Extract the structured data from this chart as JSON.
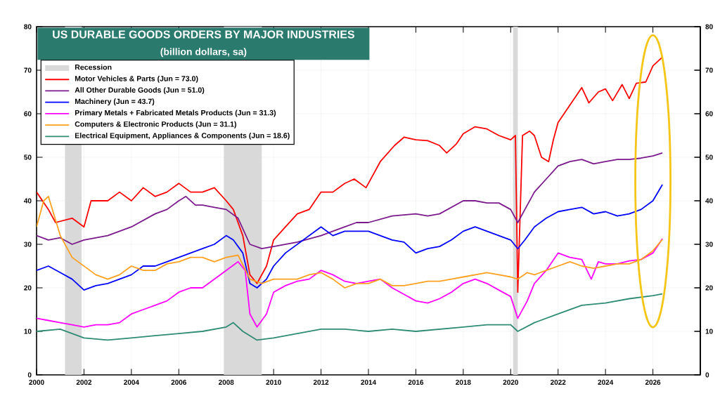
{
  "chart_data": {
    "type": "line",
    "title": "US DURABLE GOODS ORDERS BY MAJOR INDUSTRIES",
    "subtitle": "(billion dollars, sa)",
    "xlim": [
      2000,
      2028
    ],
    "xticks": [
      2000,
      2002,
      2004,
      2006,
      2008,
      2010,
      2012,
      2014,
      2016,
      2018,
      2020,
      2022,
      2024,
      2026
    ],
    "ylim": [
      0,
      80
    ],
    "yticks": [
      0,
      10,
      20,
      30,
      40,
      50,
      60,
      70,
      80
    ],
    "y2lim": [
      0,
      80
    ],
    "y2ticks": [
      0,
      10,
      20,
      30,
      40,
      50,
      60,
      70,
      80
    ],
    "grid": true,
    "legend": "top left",
    "bands": [
      {
        "axis": "x",
        "from": 2001.2,
        "to": 2001.9,
        "label": "Recession",
        "color": "#d9d9d9"
      },
      {
        "axis": "x",
        "from": 2007.9,
        "to": 2009.5,
        "color": "#d9d9d9"
      },
      {
        "axis": "x",
        "from": 2020.1,
        "to": 2020.3,
        "color": "#d9d9d9"
      }
    ],
    "series": [
      {
        "name": "Motor Vehicles & Parts (Jun = 73.0)",
        "color": "#ff0000",
        "x": [
          2000,
          2000.5,
          2000.8,
          2001.5,
          2002,
          2002.3,
          2003,
          2003.5,
          2004,
          2004.5,
          2005,
          2005.5,
          2006,
          2006.5,
          2007,
          2007.5,
          2008,
          2008.3,
          2008.7,
          2009,
          2009.3,
          2009.7,
          2010,
          2010.5,
          2011,
          2011.5,
          2012,
          2012.5,
          2013,
          2013.4,
          2013.9,
          2014.5,
          2015.1,
          2015.5,
          2016,
          2016.5,
          2017,
          2017.3,
          2017.7,
          2018,
          2018.5,
          2019,
          2019.5,
          2020,
          2020.2,
          2020.3,
          2020.5,
          2020.8,
          2021,
          2021.3,
          2021.6,
          2021.8,
          2022,
          2022.5,
          2023,
          2023.3,
          2023.7,
          2024,
          2024.3,
          2024.7,
          2025,
          2025.3,
          2025.7,
          2026,
          2026.4
        ],
        "values": [
          42,
          38,
          35,
          36,
          34,
          40,
          40,
          42,
          40,
          43,
          41,
          42,
          44,
          42,
          42,
          43,
          40,
          38,
          32,
          23,
          21,
          25,
          31,
          34,
          37,
          38,
          42,
          42,
          44,
          45,
          43,
          49,
          52.7,
          54.6,
          54,
          53.8,
          52.7,
          51,
          53,
          55.4,
          57,
          56.5,
          55,
          54,
          55,
          19,
          55,
          56,
          55,
          50,
          49,
          54,
          58,
          62,
          66,
          62.5,
          65,
          65.7,
          63,
          66.7,
          63.5,
          67,
          67.3,
          71,
          73.0
        ]
      },
      {
        "name": "All Other Durable Goods (Jun = 51.0)",
        "color": "#7b1a8c",
        "x": [
          2000,
          2000.5,
          2001,
          2001.5,
          2002,
          2003,
          2004,
          2005,
          2005.5,
          2006,
          2006.3,
          2006.7,
          2007,
          2007.5,
          2008,
          2008.5,
          2009,
          2009.5,
          2010,
          2011,
          2012,
          2013,
          2013.5,
          2014,
          2015,
          2016,
          2016.5,
          2017,
          2018,
          2018.5,
          2019,
          2019.5,
          2020,
          2020.3,
          2020.6,
          2021,
          2021.5,
          2022,
          2022.5,
          2023,
          2023.5,
          2024,
          2024.5,
          2025,
          2025.5,
          2026,
          2026.4
        ],
        "values": [
          32,
          31,
          31.5,
          30,
          31,
          32,
          34,
          37,
          38,
          40,
          41,
          39,
          39,
          38.5,
          38,
          36,
          30,
          29,
          29.5,
          30.5,
          32,
          34,
          35,
          35,
          36.5,
          37,
          36.5,
          37,
          40,
          40,
          39.5,
          39.5,
          38,
          35,
          38,
          42,
          45,
          48,
          49,
          49.5,
          48.5,
          49,
          49.5,
          49.5,
          49.8,
          50.3,
          51.0
        ]
      },
      {
        "name": "Machinery (Jun = 43.7)",
        "color": "#0000ff",
        "x": [
          2000,
          2000.5,
          2001,
          2001.5,
          2002,
          2002.5,
          2003,
          2003.5,
          2004,
          2004.5,
          2005,
          2005.5,
          2006,
          2006.5,
          2007,
          2007.5,
          2008,
          2008.3,
          2008.7,
          2009,
          2009.3,
          2009.7,
          2010,
          2010.5,
          2011,
          2011.5,
          2012,
          2012.5,
          2013,
          2013.5,
          2014,
          2014.5,
          2015,
          2015.5,
          2016,
          2016.5,
          2017,
          2017.5,
          2018,
          2018.5,
          2019,
          2019.5,
          2020,
          2020.3,
          2020.6,
          2021,
          2021.5,
          2022,
          2022.5,
          2023,
          2023.5,
          2024,
          2024.5,
          2025,
          2025.5,
          2026,
          2026.4
        ],
        "values": [
          24,
          25,
          23.5,
          22,
          19.5,
          20.5,
          21,
          22,
          23,
          25,
          25,
          26,
          27,
          28,
          29,
          30,
          32,
          31,
          28,
          21,
          20,
          22,
          25,
          28,
          30,
          32,
          34,
          32,
          33,
          33,
          33,
          32,
          31,
          30.5,
          28,
          29,
          29.5,
          31,
          33,
          34,
          33,
          32,
          31,
          29,
          31,
          34,
          36,
          37.5,
          38,
          38.5,
          37,
          37.5,
          36.5,
          37,
          38,
          40,
          43.7
        ]
      },
      {
        "name": "Primary Metals + Fabricated Metals Products (Jun = 31.3)",
        "color": "#ff00ff",
        "x": [
          2000,
          2000.5,
          2001,
          2001.5,
          2002,
          2002.5,
          2003,
          2003.5,
          2004,
          2004.5,
          2005,
          2005.5,
          2006,
          2006.5,
          2007,
          2007.5,
          2008,
          2008.5,
          2008.8,
          2009,
          2009.3,
          2009.7,
          2010,
          2010.5,
          2011,
          2011.5,
          2012,
          2012.5,
          2013,
          2013.5,
          2014,
          2014.5,
          2015,
          2015.5,
          2016,
          2016.5,
          2017,
          2017.5,
          2018,
          2018.5,
          2019,
          2019.5,
          2020,
          2020.3,
          2020.7,
          2021,
          2021.5,
          2022,
          2022.5,
          2023,
          2023.4,
          2023.7,
          2024,
          2024.5,
          2025,
          2025.5,
          2026,
          2026.4
        ],
        "values": [
          13,
          12.5,
          12,
          11.5,
          11,
          11.5,
          11.5,
          12,
          14,
          15,
          16,
          17,
          19,
          20,
          20,
          22,
          24,
          26,
          24,
          14,
          11,
          14,
          19,
          20.5,
          21.5,
          22,
          24,
          23,
          21.5,
          21,
          21.5,
          22,
          20,
          18.5,
          17,
          16.5,
          17.5,
          19,
          21,
          22,
          21,
          19.5,
          18,
          13,
          17,
          21,
          24,
          28,
          27,
          26.5,
          22,
          26,
          25.5,
          25.5,
          26.2,
          26.5,
          28,
          31.3
        ]
      },
      {
        "name": "Computers & Electronic Products (Jun = 31.1)",
        "color": "#ffa020",
        "x": [
          2000,
          2000.3,
          2000.5,
          2001,
          2001.5,
          2002,
          2002.5,
          2003,
          2003.5,
          2004,
          2004.5,
          2005,
          2005.5,
          2006,
          2006.5,
          2007,
          2007.5,
          2008,
          2008.5,
          2009,
          2009.5,
          2010,
          2010.5,
          2011,
          2011.5,
          2012,
          2012.5,
          2013,
          2013.5,
          2014,
          2014.5,
          2015,
          2015.5,
          2016,
          2016.5,
          2017,
          2017.5,
          2018,
          2018.5,
          2019,
          2019.5,
          2020,
          2020.3,
          2020.7,
          2021,
          2021.5,
          2022,
          2022.5,
          2023,
          2023.5,
          2024,
          2024.5,
          2025,
          2025.5,
          2026,
          2026.4
        ],
        "values": [
          34,
          40,
          41,
          32,
          27,
          25,
          23,
          22,
          23,
          25,
          24,
          24,
          25.5,
          26,
          27,
          27,
          26,
          27,
          27.5,
          22,
          21,
          22,
          22,
          22,
          23,
          23.5,
          22,
          20,
          21,
          21,
          22,
          20.5,
          20.5,
          21,
          21.5,
          21.5,
          22,
          22.5,
          23,
          23.5,
          23,
          22.5,
          22,
          23.5,
          23,
          24,
          25,
          26,
          25,
          24.5,
          25,
          25.5,
          25.5,
          26.5,
          28.5,
          31.1
        ]
      },
      {
        "name": "Electrical Equipment, Appliances & Components  (Jun = 18.6)",
        "color": "#2e8b74",
        "x": [
          2000,
          2001,
          2001.5,
          2002,
          2003,
          2004,
          2005,
          2006,
          2007,
          2008,
          2008.3,
          2008.7,
          2009.3,
          2010,
          2011,
          2012,
          2013,
          2014,
          2015,
          2016,
          2017,
          2018,
          2019,
          2020,
          2020.3,
          2021,
          2022,
          2023,
          2024,
          2025,
          2026,
          2026.4
        ],
        "values": [
          10,
          10.5,
          9.5,
          8.5,
          8,
          8.5,
          9,
          9.5,
          10,
          11,
          12,
          10,
          8,
          8.5,
          9.5,
          10.5,
          10.5,
          10,
          10.5,
          10,
          10.5,
          11,
          11.5,
          11.5,
          10,
          12,
          14,
          16,
          16.5,
          17.5,
          18.2,
          18.6
        ]
      }
    ]
  }
}
